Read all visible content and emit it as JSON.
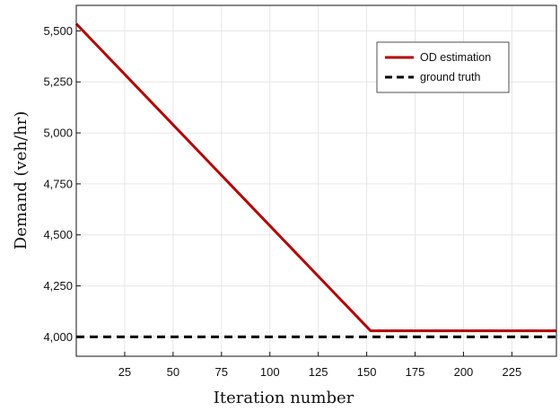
{
  "chart_data": {
    "type": "line",
    "xlabel": "Iteration number",
    "ylabel": "Demand (veh/hr)",
    "xlim": [
      0,
      248
    ],
    "ylim": [
      3905,
      5625
    ],
    "x_ticks": [
      25,
      50,
      75,
      100,
      125,
      150,
      175,
      200,
      225
    ],
    "x_tick_labels": [
      "25",
      "50",
      "75",
      "100",
      "125",
      "150",
      "175",
      "200",
      "225"
    ],
    "y_ticks": [
      4000,
      4250,
      4500,
      4750,
      5000,
      5250,
      5500
    ],
    "y_tick_labels": [
      "4,000",
      "4,250",
      "4,500",
      "4,750",
      "5,000",
      "5,250",
      "5,500"
    ],
    "grid": true,
    "legend_position": "top-right",
    "series": [
      {
        "name": "OD estimation",
        "color": "#b30000",
        "style": "solid",
        "x": [
          0,
          152,
          248
        ],
        "y": [
          5535,
          4030,
          4030
        ]
      },
      {
        "name": "ground truth",
        "color": "#000000",
        "style": "dashed",
        "x": [
          0,
          248
        ],
        "y": [
          4000,
          4000
        ]
      }
    ]
  }
}
